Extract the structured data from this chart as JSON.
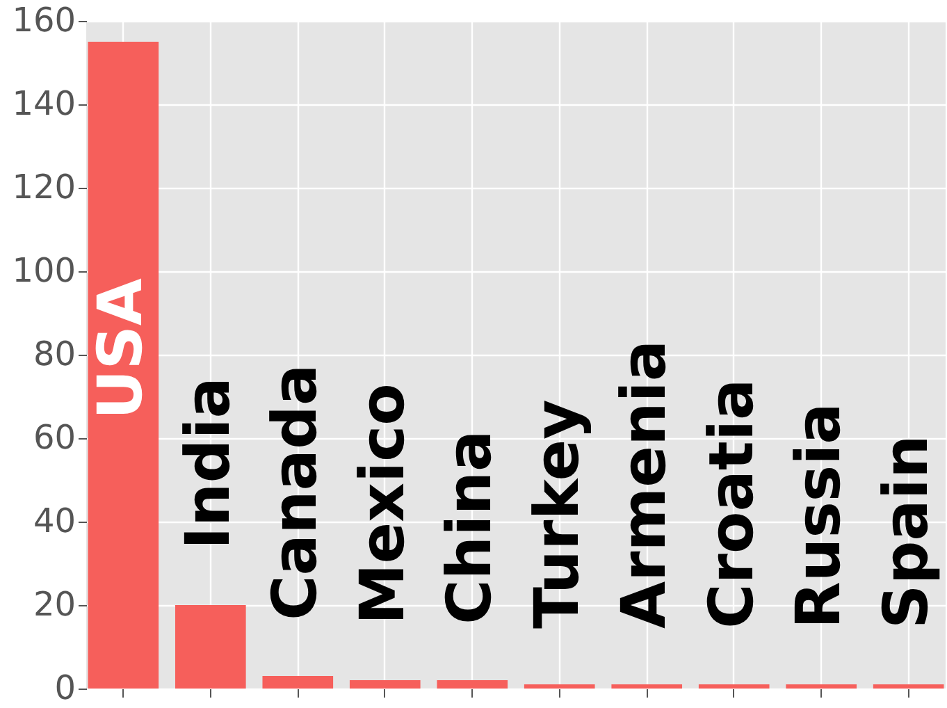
{
  "chart_data": {
    "type": "bar",
    "categories": [
      "USA",
      "India",
      "Canada",
      "Mexico",
      "China",
      "Turkey",
      "Armenia",
      "Croatia",
      "Russia",
      "Spain"
    ],
    "values": [
      155,
      20,
      3,
      2,
      2,
      1,
      1,
      1,
      1,
      1
    ],
    "color": "#f65f5b",
    "ylim": [
      0,
      160
    ],
    "yticks": [
      0,
      20,
      40,
      60,
      80,
      100,
      120,
      140,
      160
    ],
    "grid": true,
    "tick_labels": "y"
  }
}
